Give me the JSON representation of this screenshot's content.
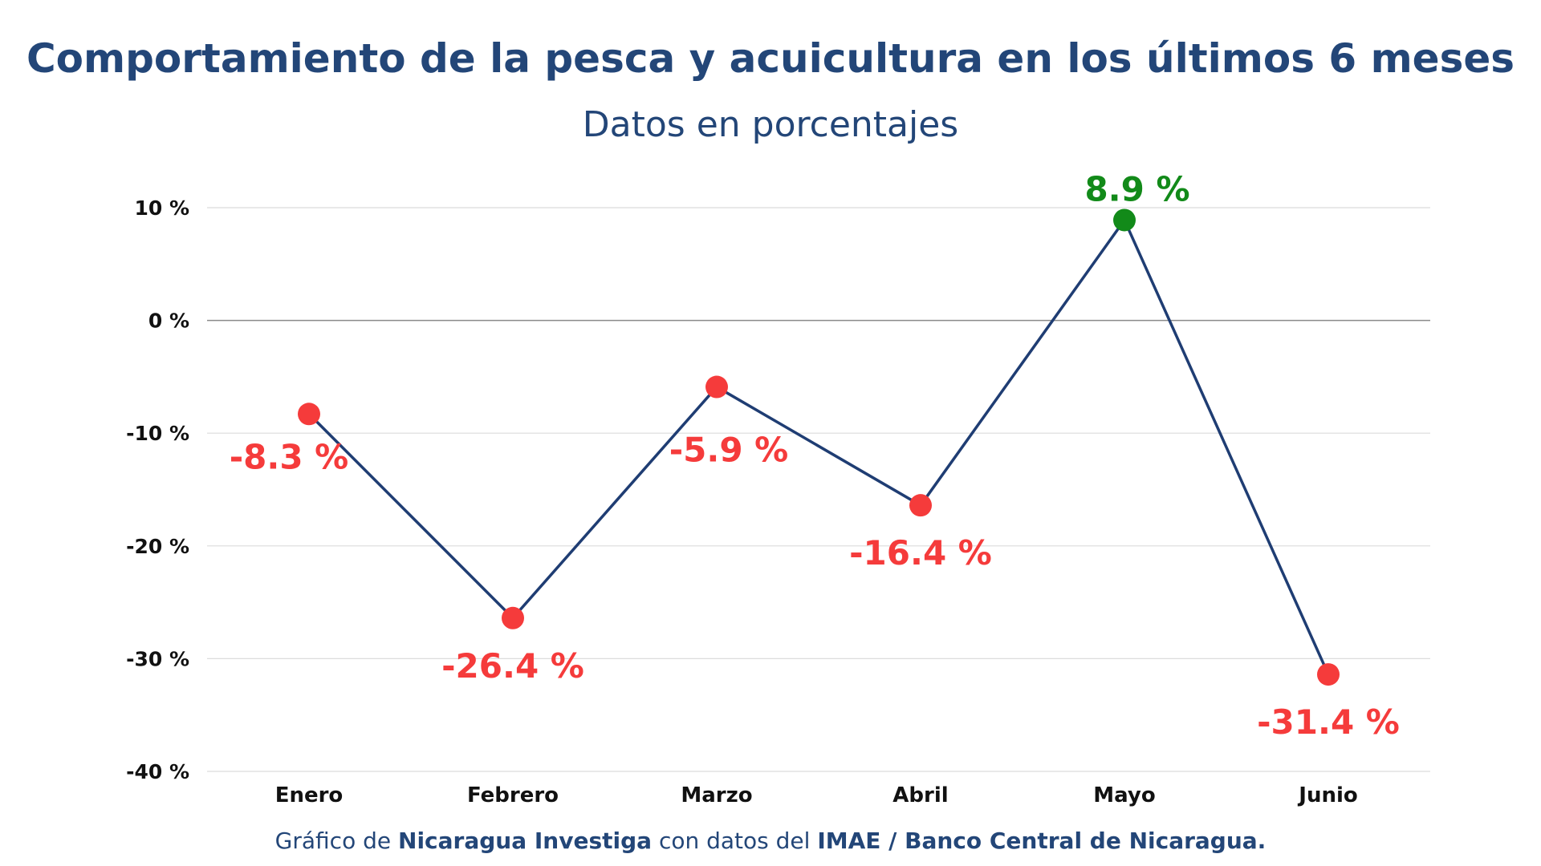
{
  "chart_data": {
    "type": "line",
    "title": "Comportamiento de la pesca y acuicultura en los últimos 6 meses",
    "subtitle": "Datos en porcentajes",
    "categories": [
      "Enero",
      "Febrero",
      "Marzo",
      "Abril",
      "Mayo",
      "Junio"
    ],
    "values": [
      -8.3,
      -26.4,
      -5.9,
      -16.4,
      8.9,
      -31.4
    ],
    "data_labels": [
      "-8.3 %",
      "-26.4 %",
      "-5.9 %",
      "-16.4 %",
      "8.9 %",
      "-31.4 %"
    ],
    "ylim": [
      -40,
      10
    ],
    "yticks": [
      10,
      0,
      -10,
      -20,
      -30,
      -40
    ],
    "ytick_labels": [
      "10 %",
      "0 %",
      "-10 %",
      "-20 %",
      "-30 %",
      "-40 %"
    ],
    "grid": true,
    "colors": {
      "title": "#234678",
      "line": "#1f3d73",
      "negative": "#f53b3b",
      "positive": "#128a19",
      "grid": "#dcdcdc",
      "zero_line": "#8a8a8a"
    }
  },
  "footer": {
    "prefix": "Gráfico de ",
    "source_name": "Nicaragua Investiga",
    "middle": " con datos del ",
    "data_source": "IMAE / Banco Central de Nicaragua."
  }
}
